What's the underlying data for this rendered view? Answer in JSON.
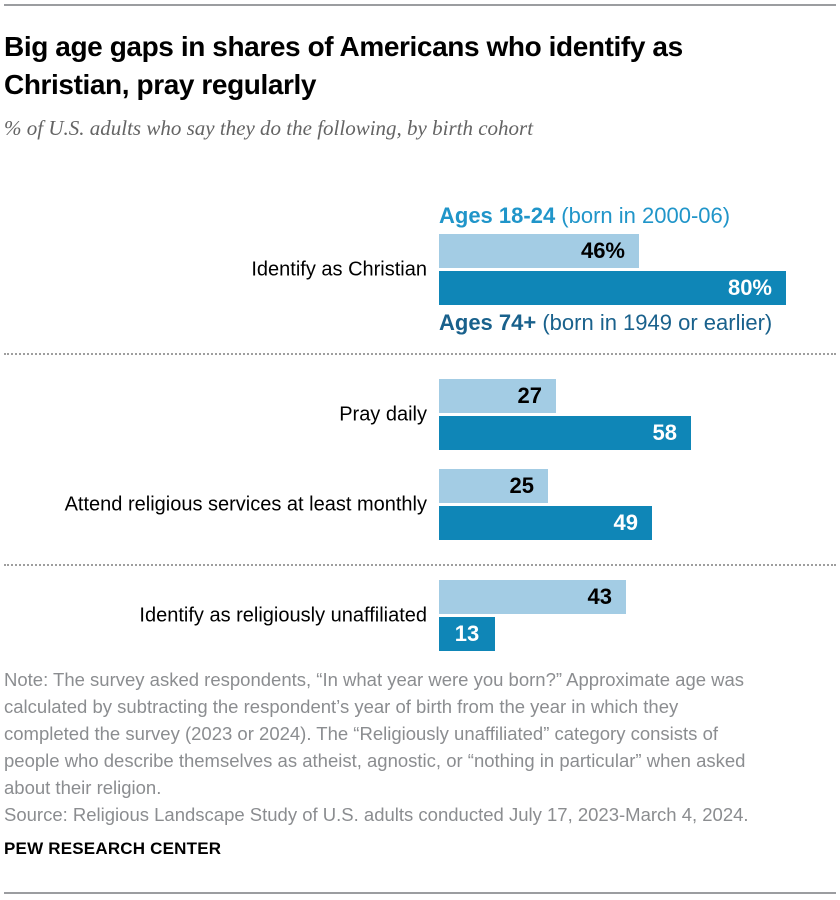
{
  "header": {
    "title_line1": "Big age gaps in shares of Americans who identify as",
    "title_line2": "Christian, pray regularly",
    "subtitle": "% of U.S. adults who say they do the following, by birth cohort"
  },
  "legend": {
    "young_bold": "Ages 18-24",
    "young_rest": " (born in 2000-06)",
    "old_bold": "Ages 74+",
    "old_rest": " (born in 1949 or earlier)"
  },
  "chart_data": {
    "type": "bar",
    "orientation": "horizontal",
    "unit": "% of U.S. adults",
    "xlim": [
      0,
      100
    ],
    "grid": false,
    "legend_position": "around-first-bar-group",
    "series": [
      {
        "name": "Ages 18-24 (born in 2000-06)",
        "color": "#a3cce4"
      },
      {
        "name": "Ages 74+ (born in 1949 or earlier)",
        "color": "#0f86b7"
      }
    ],
    "categories": [
      "Identify as Christian",
      "Pray daily",
      "Attend religious services at least monthly",
      "Identify as religiously unaffiliated"
    ],
    "rows": [
      {
        "category": "Identify as Christian",
        "young": 46,
        "old": 80,
        "young_label": "46%",
        "old_label": "80%"
      },
      {
        "category": "Pray daily",
        "young": 27,
        "old": 58,
        "young_label": "27",
        "old_label": "58"
      },
      {
        "category": "Attend religious services at least monthly",
        "young": 25,
        "old": 49,
        "young_label": "25",
        "old_label": "49"
      },
      {
        "category": "Identify as religiously unaffiliated",
        "young": 43,
        "old": 13,
        "young_label": "43",
        "old_label": "13"
      }
    ]
  },
  "colors": {
    "young_bar": "#a3cce4",
    "old_bar": "#0f86b7",
    "young_legend_text": "#2095c9",
    "old_legend_text": "#19618c"
  },
  "footer": {
    "note_lines": [
      "Note: The survey asked respondents, “In what year were you born?” Approximate age was",
      "calculated by subtracting the respondent’s year of birth from the year in which they",
      "completed the survey (2023 or 2024). The “Religiously unaffiliated” category consists of",
      "people who describe themselves as atheist, agnostic, or “nothing in particular” when asked",
      "about their religion."
    ],
    "source": "Source: Religious Landscape Study of U.S. adults conducted July 17, 2023-March 4, 2024.",
    "brand": "PEW RESEARCH CENTER"
  }
}
